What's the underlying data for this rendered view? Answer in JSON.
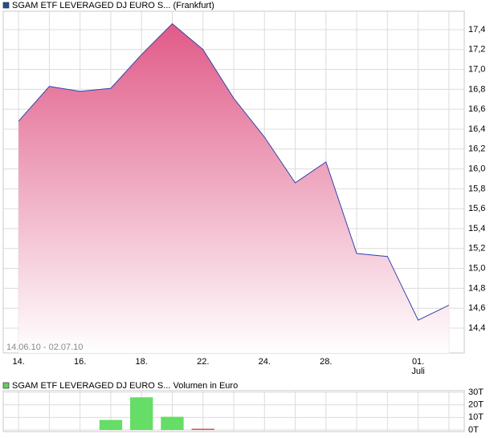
{
  "chart_data": [
    {
      "type": "area",
      "title": "SGAM ETF LEVERAGED DJ EURO S... (Frankfurt)",
      "subtitle": "14.06.10 - 02.07.10",
      "categories": [
        "14.",
        null,
        "16.",
        null,
        "18.",
        null,
        "22.",
        null,
        "24.",
        null,
        "28.",
        null,
        null,
        "01.",
        null
      ],
      "annotations": [
        "Juli"
      ],
      "values": [
        16.48,
        16.83,
        16.78,
        16.81,
        17.15,
        17.46,
        17.2,
        16.71,
        16.32,
        15.86,
        16.07,
        15.15,
        15.12,
        14.48,
        14.63
      ],
      "color": "#3344aa",
      "legend_color": "#1f4e99",
      "fill_top": "#e05a88",
      "fill_bottom": "#ffffff",
      "ylim": [
        14.15,
        17.585
      ],
      "yticks": [
        {
          "value": 14.4,
          "label": "14,4"
        },
        {
          "value": 14.6,
          "label": "14,6"
        },
        {
          "value": 14.8,
          "label": "14,8"
        },
        {
          "value": 15.0,
          "label": "15,0"
        },
        {
          "value": 15.2,
          "label": "15,2"
        },
        {
          "value": 15.4,
          "label": "15,4"
        },
        {
          "value": 15.6,
          "label": "15,6"
        },
        {
          "value": 15.8,
          "label": "15,8"
        },
        {
          "value": 16.0,
          "label": "16,0"
        },
        {
          "value": 16.2,
          "label": "16,2"
        },
        {
          "value": 16.4,
          "label": "16,4"
        },
        {
          "value": 16.6,
          "label": "16,6"
        },
        {
          "value": 16.8,
          "label": "16,8"
        },
        {
          "value": 17.0,
          "label": "17,0"
        },
        {
          "value": 17.2,
          "label": "17,2"
        },
        {
          "value": 17.4,
          "label": "17,4"
        }
      ],
      "grid": true
    },
    {
      "type": "bar",
      "title": "SGAM ETF LEVERAGED DJ EURO S... Volumen in Euro",
      "values": [
        0,
        0,
        0,
        8000,
        26000,
        10500,
        1000,
        0,
        0,
        0,
        0,
        0,
        0,
        0,
        0
      ],
      "colors": [
        "#66dd66",
        "#66dd66",
        "#66dd66",
        "#66dd66",
        "#66dd66",
        "#66dd66",
        "#dd5555",
        "#66dd66",
        "#66dd66",
        "#66dd66",
        "#66dd66",
        "#66dd66",
        "#66dd66",
        "#66dd66",
        "#66dd66"
      ],
      "legend_color": "#66cc66",
      "ylim": [
        0,
        30000
      ],
      "yticks": [
        {
          "value": 0,
          "label": "0T"
        },
        {
          "value": 10000,
          "label": "10T"
        },
        {
          "value": 20000,
          "label": "20T"
        },
        {
          "value": 30000,
          "label": "30T"
        }
      ],
      "grid": true
    }
  ]
}
